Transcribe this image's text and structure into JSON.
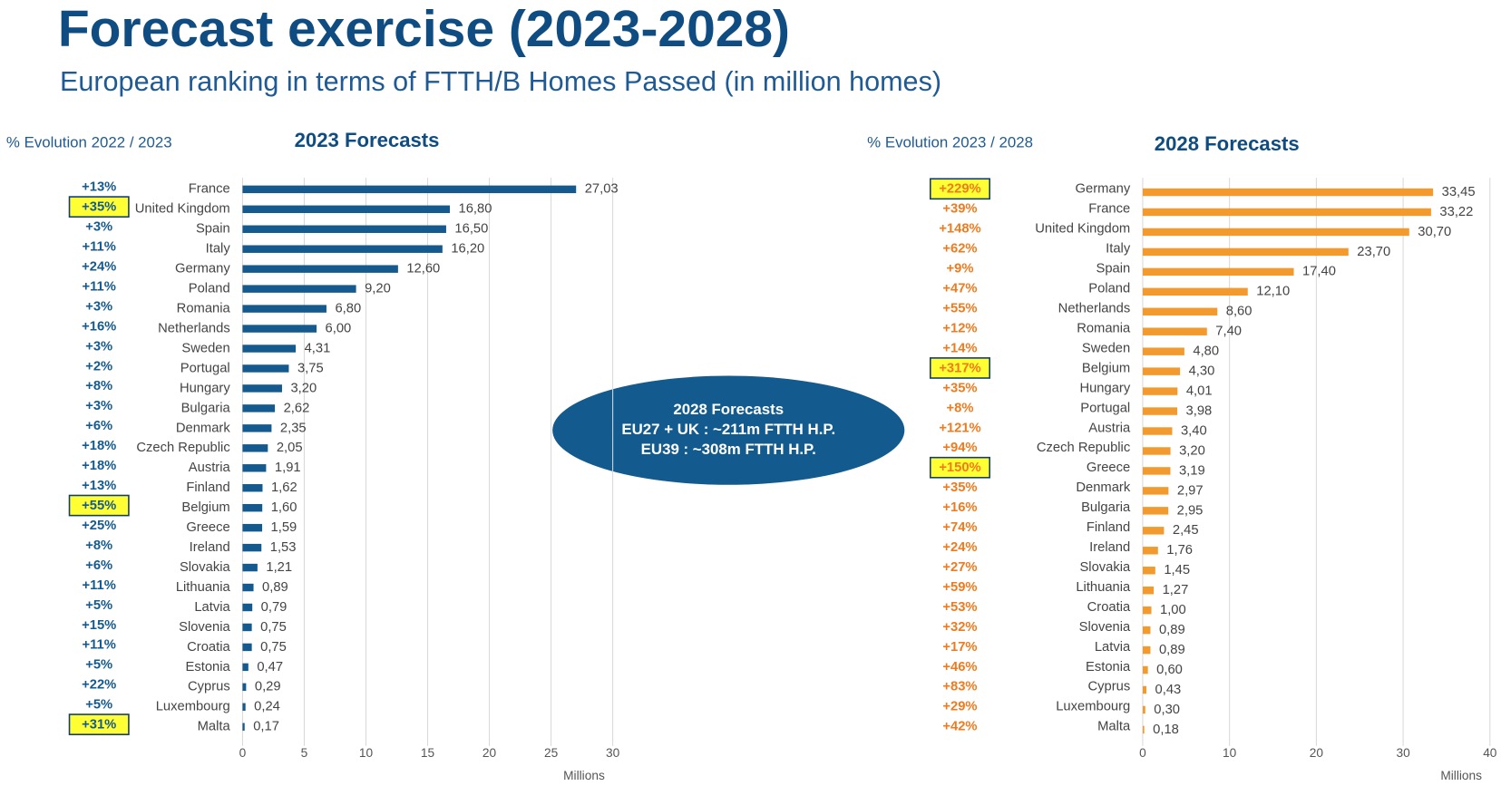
{
  "title": "Forecast exercise (2023-2028)",
  "subtitle": "European ranking in terms of FTTH/B Homes Passed (in million homes)",
  "annotation": [
    "2028 Forecasts",
    "EU27 + UK : ~211m FTTH H.P.",
    "EU39 : ~308m FTTH H.P."
  ],
  "chart_data": [
    {
      "type": "bar",
      "orientation": "horizontal",
      "title": "2023 Forecasts",
      "evolution_title": "% Evolution 2022 / 2023",
      "categories": [
        "France",
        "United Kingdom",
        "Spain",
        "Italy",
        "Germany",
        "Poland",
        "Romania",
        "Netherlands",
        "Sweden",
        "Portugal",
        "Hungary",
        "Bulgaria",
        "Denmark",
        "Czech Republic",
        "Austria",
        "Finland",
        "Belgium",
        "Greece",
        "Ireland",
        "Slovakia",
        "Lithuania",
        "Latvia",
        "Slovenia",
        "Croatia",
        "Estonia",
        "Cyprus",
        "Luxembourg",
        "Malta"
      ],
      "values": [
        27.03,
        16.8,
        16.5,
        16.2,
        12.6,
        9.2,
        6.8,
        6.0,
        4.31,
        3.75,
        3.2,
        2.62,
        2.35,
        2.05,
        1.91,
        1.62,
        1.6,
        1.59,
        1.53,
        1.21,
        0.89,
        0.79,
        0.75,
        0.75,
        0.47,
        0.29,
        0.24,
        0.17
      ],
      "value_labels": [
        "27,03",
        "16,80",
        "16,50",
        "16,20",
        "12,60",
        "9,20",
        "6,80",
        "6,00",
        "4,31",
        "3,75",
        "3,20",
        "2,62",
        "2,35",
        "2,05",
        "1,91",
        "1,62",
        "1,60",
        "1,59",
        "1,53",
        "1,21",
        "0,89",
        "0,79",
        "0,75",
        "0,75",
        "0,47",
        "0,29",
        "0,24",
        "0,17"
      ],
      "evolution_labels": [
        "+13%",
        "+35%",
        "+3%",
        "+11%",
        "+24%",
        "+11%",
        "+3%",
        "+16%",
        "+3%",
        "+2%",
        "+8%",
        "+3%",
        "+6%",
        "+18%",
        "+18%",
        "+13%",
        "+55%",
        "+25%",
        "+8%",
        "+6%",
        "+11%",
        "+5%",
        "+15%",
        "+11%",
        "+5%",
        "+22%",
        "+5%",
        "+31%"
      ],
      "highlight": [
        1,
        16,
        27
      ],
      "color": "#155a8e",
      "evolution_color": "#155a8e",
      "xlim": [
        0,
        30
      ],
      "xticks": [
        0,
        5,
        10,
        15,
        20,
        25,
        30
      ],
      "xlabel": "Millions",
      "grid": true
    },
    {
      "type": "bar",
      "orientation": "horizontal",
      "title": "2028 Forecasts",
      "evolution_title": "% Evolution 2023 / 2028",
      "categories": [
        "Germany",
        "France",
        "United Kingdom",
        "Italy",
        "Spain",
        "Poland",
        "Netherlands",
        "Romania",
        "Sweden",
        "Belgium",
        "Hungary",
        "Portugal",
        "Austria",
        "Czech Republic",
        "Greece",
        "Denmark",
        "Bulgaria",
        "Finland",
        "Ireland",
        "Slovakia",
        "Lithuania",
        "Croatia",
        "Slovenia",
        "Latvia",
        "Estonia",
        "Cyprus",
        "Luxembourg",
        "Malta"
      ],
      "values": [
        33.45,
        33.22,
        30.7,
        23.7,
        17.4,
        12.1,
        8.6,
        7.4,
        4.8,
        4.3,
        4.01,
        3.98,
        3.4,
        3.2,
        3.19,
        2.97,
        2.95,
        2.45,
        1.76,
        1.45,
        1.27,
        1.0,
        0.89,
        0.89,
        0.6,
        0.43,
        0.3,
        0.18
      ],
      "value_labels": [
        "33,45",
        "33,22",
        "30,70",
        "23,70",
        "17,40",
        "12,10",
        "8,60",
        "7,40",
        "4,80",
        "4,30",
        "4,01",
        "3,98",
        "3,40",
        "3,20",
        "3,19",
        "2,97",
        "2,95",
        "2,45",
        "1,76",
        "1,45",
        "1,27",
        "1,00",
        "0,89",
        "0,89",
        "0,60",
        "0,43",
        "0,30",
        "0,18"
      ],
      "evolution_labels": [
        "+229%",
        "+39%",
        "+148%",
        "+62%",
        "+9%",
        "+47%",
        "+55%",
        "+12%",
        "+14%",
        "+317%",
        "+35%",
        "+8%",
        "+121%",
        "+94%",
        "+150%",
        "+35%",
        "+16%",
        "+74%",
        "+24%",
        "+27%",
        "+59%",
        "+53%",
        "+32%",
        "+17%",
        "+46%",
        "+83%",
        "+29%",
        "+42%"
      ],
      "highlight": [
        0,
        9,
        14
      ],
      "color": "#f39a2e",
      "evolution_color": "#f07a1e",
      "xlim": [
        0,
        40
      ],
      "xticks": [
        0,
        10,
        20,
        30,
        40
      ],
      "xlabel": "Millions",
      "grid": true
    }
  ]
}
